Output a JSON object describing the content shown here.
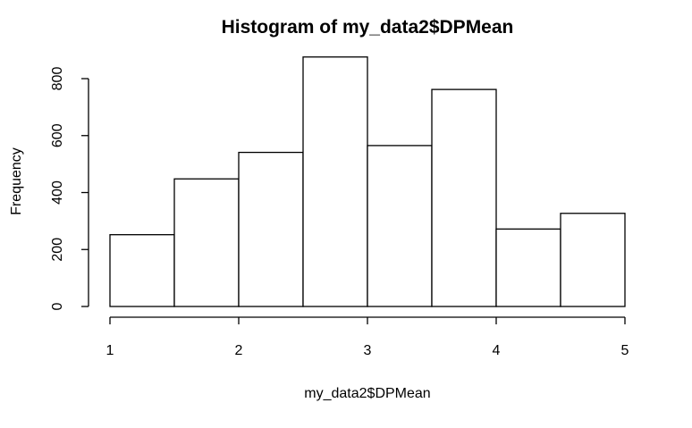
{
  "chart_data": {
    "type": "bar",
    "title": "Histogram of my_data2$DPMean",
    "xlabel": "my_data2$DPMean",
    "ylabel": "Frequency",
    "bins": [
      {
        "from": 1.0,
        "to": 1.5,
        "count": 252
      },
      {
        "from": 1.5,
        "to": 2.0,
        "count": 448
      },
      {
        "from": 2.0,
        "to": 2.5,
        "count": 541
      },
      {
        "from": 2.5,
        "to": 3.0,
        "count": 876
      },
      {
        "from": 3.0,
        "to": 3.5,
        "count": 565
      },
      {
        "from": 3.5,
        "to": 4.0,
        "count": 762
      },
      {
        "from": 4.0,
        "to": 4.5,
        "count": 272
      },
      {
        "from": 4.5,
        "to": 5.0,
        "count": 327
      }
    ],
    "xlim": [
      1,
      5
    ],
    "ylim": [
      0,
      800
    ],
    "x_ticks": [
      "1",
      "2",
      "3",
      "4",
      "5"
    ],
    "y_ticks": [
      "0",
      "200",
      "400",
      "600",
      "800"
    ],
    "grid": false,
    "bar_fill": "#ffffff",
    "bar_stroke": "#000000"
  }
}
